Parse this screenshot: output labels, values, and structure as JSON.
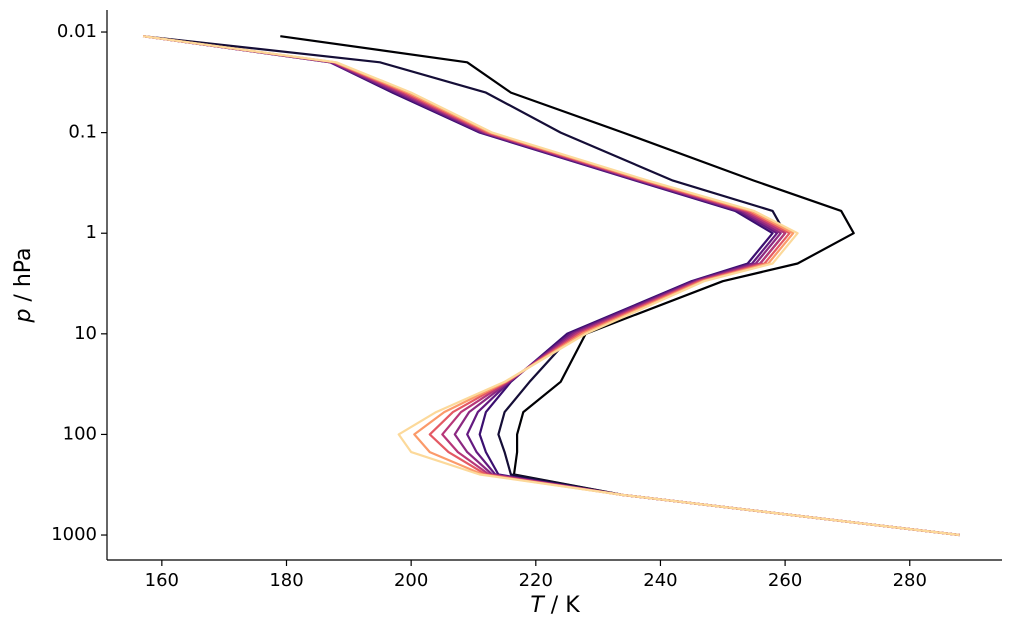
{
  "chart_data": {
    "type": "line",
    "xlabel_symbol": "T",
    "xlabel_unit": " / K",
    "ylabel_symbol": "p",
    "ylabel_unit": " / hPa",
    "yscale": "log",
    "yinvert": true,
    "xlim": [
      151.2,
      294.8
    ],
    "xticks": [
      160,
      180,
      200,
      220,
      240,
      260,
      280
    ],
    "ylim": [
      0.00604,
      1771
    ],
    "yticks": [
      0.01,
      0.1,
      1,
      10,
      100,
      1000
    ],
    "y": [
      0.011,
      0.02,
      0.04,
      0.1,
      0.3,
      0.6,
      1,
      2,
      3,
      10,
      30,
      60,
      100,
      150,
      250,
      400,
      1000
    ],
    "series": [
      {
        "color": "#000004",
        "values": [
          179,
          209,
          216,
          234,
          255,
          269,
          271,
          262,
          250,
          228,
          224,
          218,
          217,
          217,
          216.5,
          234,
          288
        ]
      },
      {
        "color": "#150e37",
        "values": [
          157,
          195,
          212,
          224,
          242,
          258,
          260,
          256,
          246,
          226,
          219,
          215,
          214,
          215,
          216,
          234,
          288
        ]
      },
      {
        "color": "#3b0f70",
        "values": [
          157,
          187,
          197,
          211,
          236,
          252,
          258,
          254,
          245,
          225,
          216,
          212,
          211,
          212,
          214,
          234,
          288
        ]
      },
      {
        "color": "#641a80",
        "values": [
          157,
          187,
          197.5,
          211.3,
          236.3,
          252.5,
          258.7,
          254.7,
          245.3,
          225.5,
          215.8,
          210.7,
          209,
          210.5,
          213.5,
          234,
          288
        ]
      },
      {
        "color": "#8c2981",
        "values": [
          157,
          187.3,
          198,
          211.7,
          236.7,
          253,
          259.3,
          255.3,
          245.7,
          226,
          215.7,
          209.3,
          207,
          209,
          213,
          234,
          288
        ]
      },
      {
        "color": "#b73779",
        "values": [
          157,
          187.5,
          198.5,
          212,
          237,
          253.5,
          260,
          256,
          246,
          226.5,
          215.5,
          208,
          205,
          207.5,
          212.5,
          234,
          288
        ]
      },
      {
        "color": "#e45a64",
        "values": [
          157,
          187.7,
          199,
          212.3,
          237.3,
          254,
          260.7,
          256.7,
          246.3,
          227,
          215.3,
          206.7,
          203,
          206,
          212,
          234,
          288
        ]
      },
      {
        "color": "#fb9a6a",
        "values": [
          157,
          187.8,
          199.5,
          212.7,
          237.7,
          254.5,
          261.3,
          257.3,
          246.7,
          227.5,
          215.2,
          205.3,
          200.5,
          203,
          211.5,
          234,
          288
        ]
      },
      {
        "color": "#fcd99a",
        "values": [
          157,
          188,
          200,
          213,
          238,
          255,
          262,
          258,
          247,
          228,
          215,
          204,
          198,
          200,
          211,
          234,
          288
        ]
      }
    ]
  }
}
